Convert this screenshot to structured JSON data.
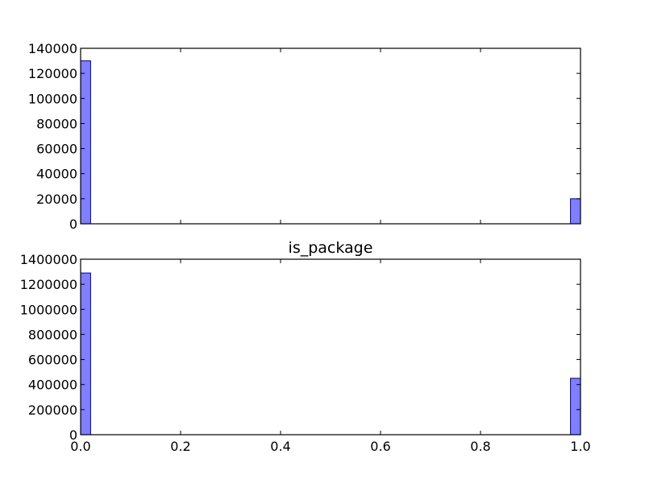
{
  "chart_data": [
    {
      "type": "bar",
      "title": "",
      "xlabel": "",
      "ylabel": "",
      "xlim": [
        0.0,
        1.0
      ],
      "ylim": [
        0,
        140000
      ],
      "bin_width": 0.02,
      "x": [
        0.0,
        0.98
      ],
      "values": [
        130000,
        20000
      ],
      "xticks": [
        0.0,
        0.2,
        0.4,
        0.6,
        0.8,
        1.0
      ],
      "xtick_labels": [],
      "yticks": [
        0,
        20000,
        40000,
        60000,
        80000,
        100000,
        120000,
        140000
      ],
      "ytick_labels": [
        "0",
        "20000",
        "40000",
        "60000",
        "80000",
        "100000",
        "120000",
        "140000"
      ],
      "color": "#0000ff",
      "grid": false
    },
    {
      "type": "bar",
      "title": "is_package",
      "xlabel": "",
      "ylabel": "",
      "xlim": [
        0.0,
        1.0
      ],
      "ylim": [
        0,
        1400000
      ],
      "bin_width": 0.02,
      "x": [
        0.0,
        0.98
      ],
      "values": [
        1290000,
        450000
      ],
      "xticks": [
        0.0,
        0.2,
        0.4,
        0.6,
        0.8,
        1.0
      ],
      "xtick_labels": [
        "0.0",
        "0.2",
        "0.4",
        "0.6",
        "0.8",
        "1.0"
      ],
      "yticks": [
        0,
        200000,
        400000,
        600000,
        800000,
        1000000,
        1200000,
        1400000
      ],
      "ytick_labels": [
        "0",
        "200000",
        "400000",
        "600000",
        "800000",
        "1000000",
        "1200000",
        "1400000"
      ],
      "color": "#0000ff",
      "grid": false
    }
  ]
}
